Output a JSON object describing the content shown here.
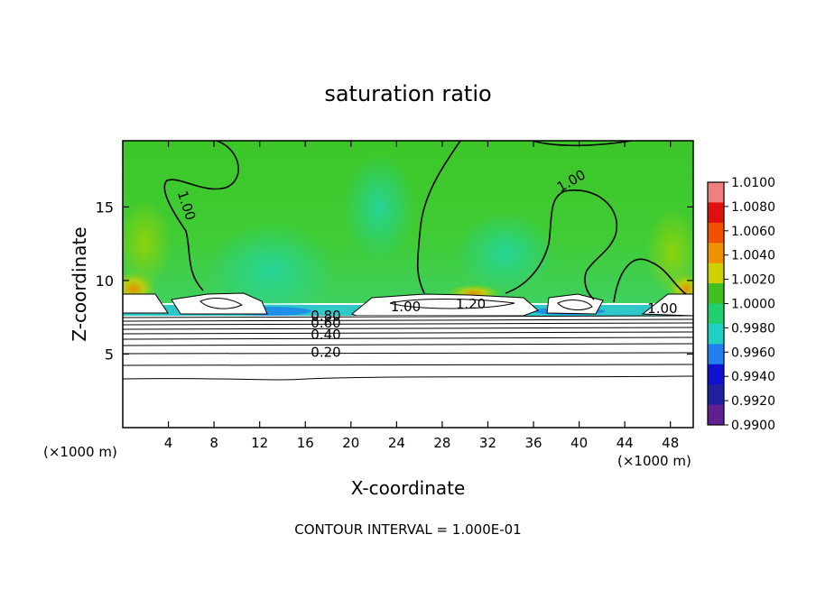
{
  "chart_data": {
    "type": "heatmap",
    "title": "saturation ratio",
    "xlabel": "X-coordinate",
    "ylabel": "Z-coordinate",
    "x_unit_left": "(×1000 m)",
    "x_unit_right": "(×1000 m)",
    "xlim": [
      0,
      50
    ],
    "ylim": [
      0,
      19.5
    ],
    "x_ticks": [
      4,
      8,
      12,
      16,
      20,
      24,
      28,
      32,
      36,
      40,
      44,
      48
    ],
    "y_ticks": [
      5,
      10,
      15
    ],
    "colorbar": {
      "levels": [
        1.01,
        1.008,
        1.006,
        1.004,
        1.002,
        1.0,
        0.998,
        0.996,
        0.994,
        0.992,
        0.99
      ],
      "labels": [
        "1.0100",
        "1.0080",
        "1.0060",
        "1.0040",
        "1.0020",
        "1.0000",
        "0.9980",
        "0.9960",
        "0.9940",
        "0.9920",
        "0.9900"
      ],
      "colors": [
        "#f08080",
        "#e01010",
        "#f05000",
        "#f09000",
        "#d0d000",
        "#40c020",
        "#20d070",
        "#20d0c0",
        "#2080f0",
        "#1010d0",
        "#2020a0",
        "#602090"
      ]
    },
    "contour_labels": [
      {
        "text": "1.00",
        "x": 5.2,
        "y": 15.0
      },
      {
        "text": "1.00",
        "x": 39.5,
        "y": 16.5
      },
      {
        "text": "1.00",
        "x": 24.8,
        "y": 7.9
      },
      {
        "text": "1.20",
        "x": 30.5,
        "y": 8.1
      },
      {
        "text": "1.00",
        "x": 47.3,
        "y": 7.8
      },
      {
        "text": "0.80",
        "x": 17.8,
        "y": 7.3
      },
      {
        "text": "0.60",
        "x": 17.8,
        "y": 6.8
      },
      {
        "text": "0.40",
        "x": 17.8,
        "y": 6.0
      },
      {
        "text": "0.20",
        "x": 17.8,
        "y": 4.8
      }
    ],
    "footer": "CONTOUR INTERVAL = 1.000E-01"
  }
}
